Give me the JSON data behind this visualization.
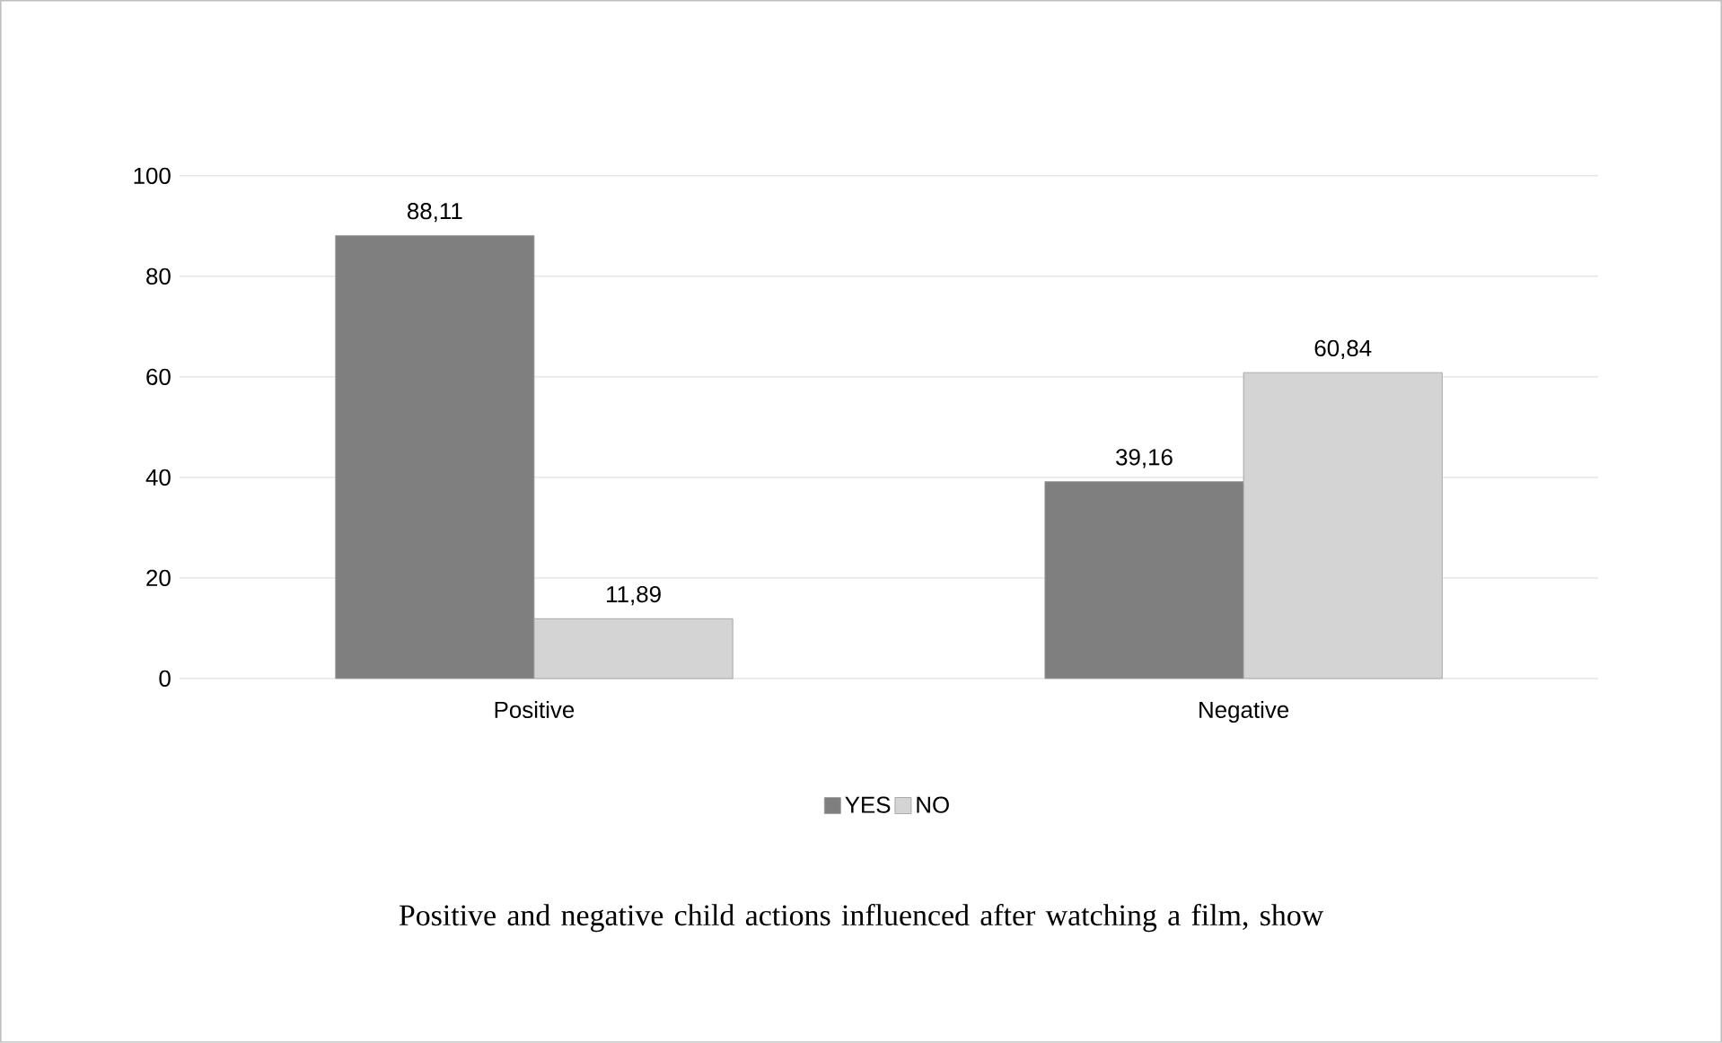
{
  "chart_data": {
    "type": "bar",
    "title": "Positive and negative child actions influenced after watching a film, show",
    "categories": [
      "Positive",
      "Negative"
    ],
    "series": [
      {
        "name": "YES",
        "color": "#7f7f7f",
        "values": [
          88.11,
          39.16
        ],
        "value_labels": [
          "88,11",
          "39,16"
        ]
      },
      {
        "name": "NO",
        "color": "#d4d4d4",
        "values": [
          11.89,
          60.84
        ],
        "value_labels": [
          "11,89",
          "60,84"
        ]
      }
    ],
    "ylim": [
      0,
      100
    ],
    "yticks": [
      0,
      20,
      40,
      60,
      80,
      100
    ],
    "grid": "y",
    "legend": "bottom"
  }
}
